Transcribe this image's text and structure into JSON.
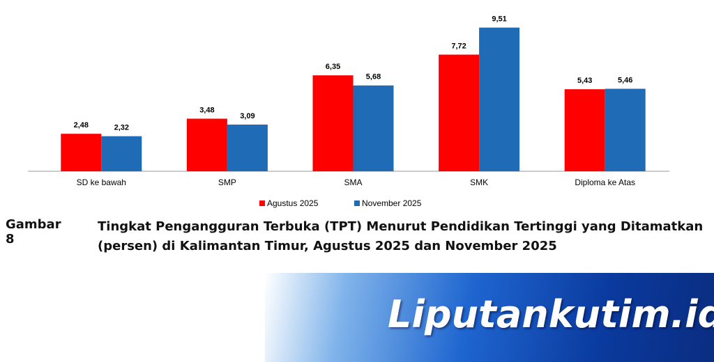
{
  "chart_data": {
    "type": "bar",
    "categories": [
      "SD ke bawah",
      "SMP",
      "SMA",
      "SMK",
      "Diploma ke Atas"
    ],
    "series": [
      {
        "name": "Agustus 2025",
        "color": "#ff0000",
        "values": [
          2.48,
          3.48,
          6.35,
          7.72,
          5.43
        ],
        "value_labels": [
          "2,48",
          "3,48",
          "6,35",
          "7,72",
          "5,43"
        ]
      },
      {
        "name": "November 2025",
        "color": "#1f6bb5",
        "values": [
          2.32,
          3.09,
          5.68,
          9.51,
          5.46
        ],
        "value_labels": [
          "2,32",
          "3,09",
          "5,68",
          "9,51",
          "5,46"
        ]
      }
    ],
    "ylim": [
      0,
      10
    ]
  },
  "caption": {
    "label": "Gambar 8",
    "text": "Tingkat Pengangguran Terbuka (TPT) Menurut Pendidikan Tertinggi yang Ditamatkan (persen) di Kalimantan Timur, Agustus 2025 dan November 2025"
  },
  "watermark": "Liputankutim.id"
}
